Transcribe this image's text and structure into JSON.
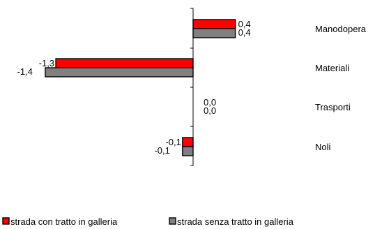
{
  "chart_data": {
    "type": "bar",
    "orientation": "horizontal",
    "categories": [
      "Manodopera",
      "Materiali",
      "Trasporti",
      "Noli"
    ],
    "series": [
      {
        "name": "strada con tratto in galleria",
        "values": [
          0.4,
          -1.3,
          0.0,
          -0.1
        ],
        "labels": [
          "0,4",
          "-1,3",
          "0,0",
          "-0,1"
        ],
        "color": "#ff0000"
      },
      {
        "name": "strada senza tratto in galleria",
        "values": [
          0.4,
          -1.4,
          0.0,
          -0.1
        ],
        "labels": [
          "0,4",
          "-1,4",
          "0,0",
          "-0,1"
        ],
        "color": "#808080"
      }
    ],
    "xlim": [
      -1.4,
      0.4
    ],
    "grid": false,
    "legend": "bottom"
  }
}
